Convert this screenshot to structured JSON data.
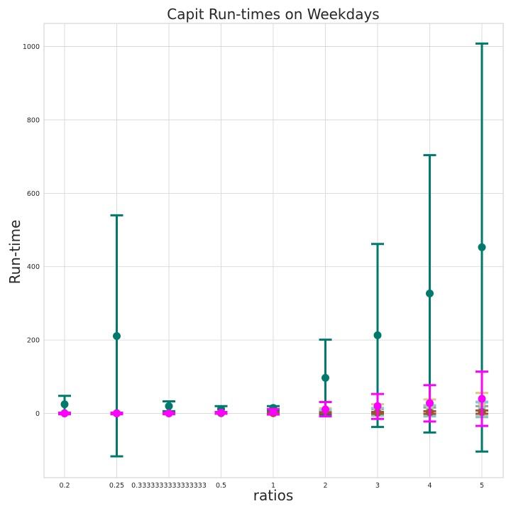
{
  "chart_data": {
    "type": "errorbar",
    "title": "Capit Run-times on Weekdays",
    "xlabel": "ratios",
    "ylabel": "Run-time",
    "categories": [
      "0.2",
      "0.25",
      "0.3333333333333333",
      "0.5",
      "1",
      "2",
      "3",
      "4",
      "5"
    ],
    "ylim": [
      -175,
      1063
    ],
    "yticks": [
      0,
      200,
      400,
      600,
      800,
      1000
    ],
    "grid": true,
    "series": [
      {
        "color": "#9c9c9c",
        "mean": [
          0.5,
          0.5,
          0.5,
          1,
          1,
          2,
          3,
          4,
          5
        ],
        "low": [
          -1,
          -1,
          -1,
          -1,
          -2,
          -4,
          -6,
          -8,
          -10
        ],
        "high": [
          2,
          2,
          2,
          3,
          4,
          8,
          12,
          16,
          20
        ]
      },
      {
        "color": "#8fb8e0",
        "mean": [
          0.5,
          0.5,
          0.5,
          1,
          2,
          3,
          5,
          8,
          12
        ],
        "low": [
          -1,
          -1,
          -1,
          -1,
          -2,
          -3,
          -4,
          -6,
          -8
        ],
        "high": [
          2,
          2,
          2,
          3,
          6,
          9,
          14,
          22,
          32
        ]
      },
      {
        "color": "#e3c67a",
        "mean": [
          0.5,
          0.5,
          0.5,
          1.5,
          3,
          5,
          10,
          18,
          28
        ],
        "low": [
          -1,
          -1,
          -1,
          -1,
          -2,
          -4,
          -5,
          -6,
          -8
        ],
        "high": [
          2,
          2,
          2,
          4,
          8,
          14,
          25,
          38,
          56
        ]
      },
      {
        "color": "#7fcfcf",
        "mean": [
          0.5,
          0.5,
          0.5,
          1,
          2,
          3,
          5,
          7,
          10
        ],
        "low": [
          -1,
          -1,
          -1,
          -1,
          -2,
          -5,
          -6,
          -7,
          -9
        ],
        "high": [
          2,
          2,
          2,
          3,
          6,
          10,
          15,
          22,
          30
        ]
      },
      {
        "color": "#a0522d",
        "mean": [
          0.5,
          0.5,
          0.5,
          0.5,
          0.5,
          1,
          2,
          3,
          4
        ],
        "low": [
          -1,
          -1,
          -1,
          -1,
          -1,
          -1,
          -1,
          -1,
          -1
        ],
        "high": [
          2,
          2,
          2,
          2,
          2,
          3,
          4,
          6,
          8
        ]
      },
      {
        "color": "#007a6c",
        "mean": [
          25,
          211,
          20,
          12,
          15,
          97,
          213,
          327,
          453
        ],
        "low": [
          2,
          -117,
          6,
          4,
          8,
          -5,
          -37,
          -52,
          -104
        ],
        "high": [
          48,
          540,
          33,
          20,
          20,
          201,
          462,
          704,
          1008
        ]
      },
      {
        "color": "#ff00ff",
        "mean": [
          0,
          0,
          0,
          2,
          5,
          11,
          20,
          28,
          40
        ],
        "low": [
          -2,
          -2,
          -2,
          0,
          -3,
          -8,
          -15,
          -22,
          -34
        ],
        "high": [
          2,
          2,
          2,
          4,
          12,
          31,
          53,
          77,
          114
        ]
      }
    ]
  }
}
